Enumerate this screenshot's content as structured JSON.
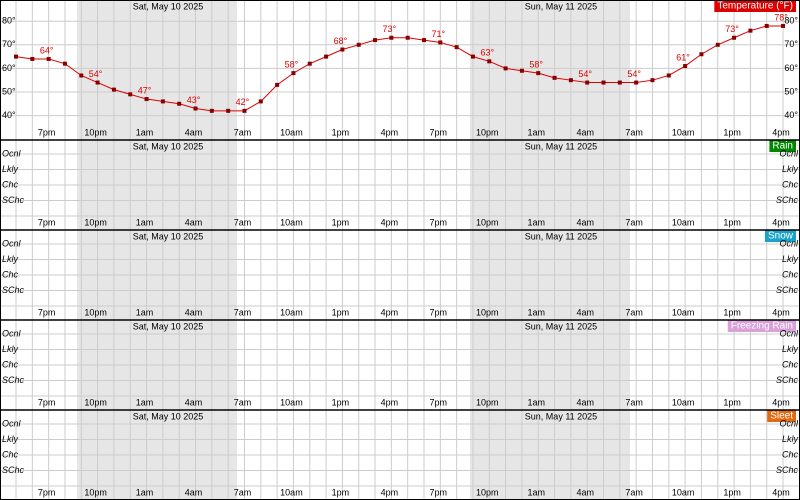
{
  "chart_data": [
    {
      "type": "line",
      "title": "Temperature (°F)",
      "color": "#dd0000",
      "dates": [
        "Sat, May 10 2025",
        "Sun, May 11 2025"
      ],
      "categories": [
        null,
        null,
        "7pm",
        null,
        null,
        "10pm",
        null,
        null,
        "1am",
        null,
        null,
        "4am",
        null,
        null,
        "7am",
        null,
        null,
        "10am",
        null,
        null,
        "1pm",
        null,
        null,
        "4pm",
        null,
        null,
        "7pm",
        null,
        null,
        "10pm",
        null,
        null,
        "1am",
        null,
        null,
        "4am",
        null,
        null,
        "7am",
        null,
        null,
        "10am",
        null,
        null,
        "1pm",
        null,
        null,
        "4pm"
      ],
      "values": [
        65,
        64,
        64,
        62,
        57,
        54,
        51,
        49,
        47,
        46,
        45,
        43,
        42,
        42,
        42,
        46,
        53,
        58,
        62,
        65,
        68,
        70,
        72,
        73,
        73,
        72,
        71,
        69,
        65,
        63,
        60,
        59,
        58,
        56,
        55,
        54,
        54,
        54,
        54,
        55,
        57,
        61,
        66,
        70,
        73,
        76,
        78,
        78
      ],
      "value_labels": [
        null,
        null,
        "64°",
        null,
        null,
        "54°",
        null,
        null,
        "47°",
        null,
        null,
        "43°",
        null,
        null,
        "42°",
        null,
        null,
        "58°",
        null,
        null,
        "68°",
        null,
        null,
        "73°",
        null,
        null,
        "71°",
        null,
        null,
        "63°",
        null,
        null,
        "58°",
        null,
        null,
        "54°",
        null,
        null,
        "54°",
        null,
        null,
        "61°",
        null,
        null,
        "73°",
        null,
        null,
        "78°"
      ],
      "ylim": [
        36,
        89
      ],
      "yticks": [
        {
          "value": 40,
          "label": "40°"
        },
        {
          "value": 50,
          "label": "50°"
        },
        {
          "value": 60,
          "label": "60°"
        },
        {
          "value": 70,
          "label": "70°"
        },
        {
          "value": 80,
          "label": "80°"
        }
      ]
    },
    {
      "type": "levels",
      "title": "Rain",
      "color": "#008800",
      "yticks": [
        "Ocnl",
        "Lkly",
        "Chc",
        "SChc"
      ]
    },
    {
      "type": "levels",
      "title": "Snow",
      "color": "#1aa3c8",
      "yticks": [
        "Ocnl",
        "Lkly",
        "Chc",
        "SChc"
      ]
    },
    {
      "type": "levels",
      "title": "Freezing Rain",
      "color": "#d9a0d9",
      "yticks": [
        "Ocnl",
        "Lkly",
        "Chc",
        "SChc"
      ]
    },
    {
      "type": "levels",
      "title": "Sleet",
      "color": "#e06a10",
      "yticks": [
        "Ocnl",
        "Lkly",
        "Chc",
        "SChc"
      ]
    }
  ]
}
